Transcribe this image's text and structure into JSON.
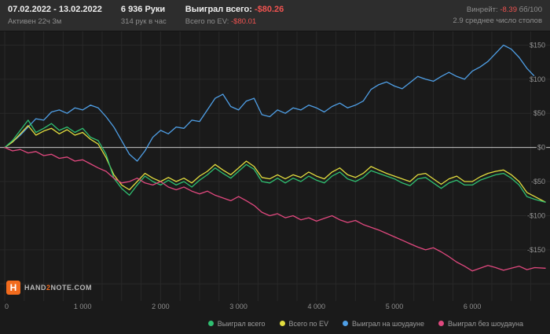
{
  "header": {
    "date_range": "07.02.2022 - 13.02.2022",
    "active_time": "Активен 22ч 3м",
    "hands": "6 936 Руки",
    "hands_per_hour": "314 рук в час",
    "won_total_label": "Выиграл всего:",
    "won_total_value": "-$80.26",
    "ev_total_label": "Всего по EV:",
    "ev_total_value": "-$80.01",
    "winrate_label": "Винрейт:",
    "winrate_value": "-8.39",
    "winrate_unit": "бб/100",
    "avg_tables": "2.9 среднее число столов"
  },
  "footer": {
    "logo_letter": "H",
    "logo_hand": "HAND",
    "logo_2": "2",
    "logo_note": "NOTE.COM"
  },
  "chart_data": {
    "type": "line",
    "title": "",
    "xlabel": "hands",
    "ylabel": "$",
    "xlim": [
      0,
      6936
    ],
    "ylim": [
      -225,
      170
    ],
    "x_minor_step": 250,
    "grid": true,
    "legend_position": "bottom",
    "grid_color": "#282828",
    "zero_line_color": "#c9c9c9",
    "axis_text_color": "#969696",
    "bg": "#1a1a1a",
    "x_tick_values": [
      0,
      1000,
      2000,
      3000,
      4000,
      5000,
      6000
    ],
    "x_tick_labels": [
      "0",
      "1 000",
      "2 000",
      "3 000",
      "4 000",
      "5 000",
      "6 000"
    ],
    "y_tick_values": [
      150,
      100,
      50,
      0,
      -50,
      -100,
      -150
    ],
    "y_tick_labels": [
      "$150",
      "$100",
      "$50",
      "$0",
      "-$50",
      "-$100",
      "-$150"
    ],
    "x": [
      0,
      100,
      200,
      300,
      400,
      500,
      600,
      700,
      800,
      900,
      1000,
      1100,
      1200,
      1300,
      1400,
      1500,
      1600,
      1700,
      1800,
      1900,
      2000,
      2100,
      2200,
      2300,
      2400,
      2500,
      2600,
      2700,
      2800,
      2900,
      3000,
      3100,
      3200,
      3300,
      3400,
      3500,
      3600,
      3700,
      3800,
      3900,
      4000,
      4100,
      4200,
      4300,
      4400,
      4500,
      4600,
      4700,
      4800,
      4900,
      5000,
      5100,
      5200,
      5300,
      5400,
      5500,
      5600,
      5700,
      5800,
      5900,
      6000,
      6100,
      6200,
      6300,
      6400,
      6500,
      6600,
      6700,
      6800,
      6936
    ],
    "series": [
      {
        "name": "Выиграл всего",
        "color": "#2fbf71",
        "final_value": -80.26,
        "values": [
          0,
          10,
          25,
          40,
          22,
          28,
          35,
          25,
          30,
          22,
          28,
          15,
          10,
          -10,
          -45,
          -60,
          -70,
          -55,
          -42,
          -50,
          -55,
          -48,
          -55,
          -50,
          -58,
          -48,
          -40,
          -30,
          -38,
          -45,
          -35,
          -25,
          -32,
          -50,
          -52,
          -45,
          -52,
          -45,
          -50,
          -42,
          -48,
          -52,
          -42,
          -36,
          -46,
          -50,
          -44,
          -34,
          -38,
          -42,
          -46,
          -52,
          -56,
          -46,
          -44,
          -52,
          -60,
          -52,
          -48,
          -55,
          -55,
          -48,
          -44,
          -40,
          -38,
          -45,
          -55,
          -72,
          -76,
          -80.26
        ]
      },
      {
        "name": "Всего по EV",
        "color": "#e3dd3f",
        "final_value": -80.01,
        "values": [
          0,
          8,
          20,
          32,
          18,
          24,
          28,
          20,
          26,
          18,
          22,
          12,
          5,
          -15,
          -40,
          -55,
          -62,
          -50,
          -38,
          -45,
          -50,
          -44,
          -50,
          -45,
          -52,
          -42,
          -35,
          -25,
          -33,
          -40,
          -30,
          -20,
          -28,
          -44,
          -46,
          -40,
          -46,
          -40,
          -44,
          -36,
          -42,
          -46,
          -36,
          -30,
          -40,
          -44,
          -38,
          -28,
          -33,
          -38,
          -42,
          -46,
          -50,
          -40,
          -38,
          -46,
          -54,
          -46,
          -42,
          -50,
          -50,
          -43,
          -38,
          -35,
          -33,
          -40,
          -50,
          -66,
          -72,
          -80.01
        ]
      },
      {
        "name": "Выиграл на шоудауне",
        "color": "#4f9fe6",
        "final_value": 97,
        "values": [
          0,
          8,
          18,
          30,
          42,
          40,
          52,
          55,
          50,
          58,
          55,
          62,
          58,
          45,
          30,
          10,
          -10,
          -20,
          -5,
          15,
          25,
          20,
          30,
          28,
          40,
          38,
          55,
          72,
          78,
          60,
          55,
          68,
          72,
          48,
          45,
          55,
          50,
          58,
          55,
          62,
          58,
          52,
          60,
          65,
          58,
          62,
          68,
          85,
          92,
          96,
          90,
          86,
          95,
          104,
          100,
          97,
          104,
          110,
          104,
          100,
          112,
          118,
          126,
          138,
          150,
          144,
          132,
          116,
          104,
          97
        ]
      },
      {
        "name": "Выиграл без шоудауна",
        "color": "#e0487e",
        "final_value": -177,
        "values": [
          0,
          -5,
          -3,
          -8,
          -6,
          -12,
          -10,
          -16,
          -14,
          -20,
          -18,
          -24,
          -30,
          -35,
          -45,
          -52,
          -50,
          -45,
          -52,
          -55,
          -50,
          -58,
          -62,
          -58,
          -64,
          -68,
          -64,
          -70,
          -74,
          -78,
          -72,
          -78,
          -85,
          -95,
          -100,
          -97,
          -103,
          -100,
          -106,
          -103,
          -108,
          -104,
          -100,
          -106,
          -110,
          -107,
          -113,
          -117,
          -121,
          -126,
          -131,
          -136,
          -141,
          -146,
          -150,
          -147,
          -153,
          -160,
          -168,
          -174,
          -181,
          -177,
          -173,
          -176,
          -180,
          -177,
          -174,
          -179,
          -176,
          -177
        ]
      }
    ],
    "draw_order": [
      2,
      1,
      0,
      3
    ]
  }
}
